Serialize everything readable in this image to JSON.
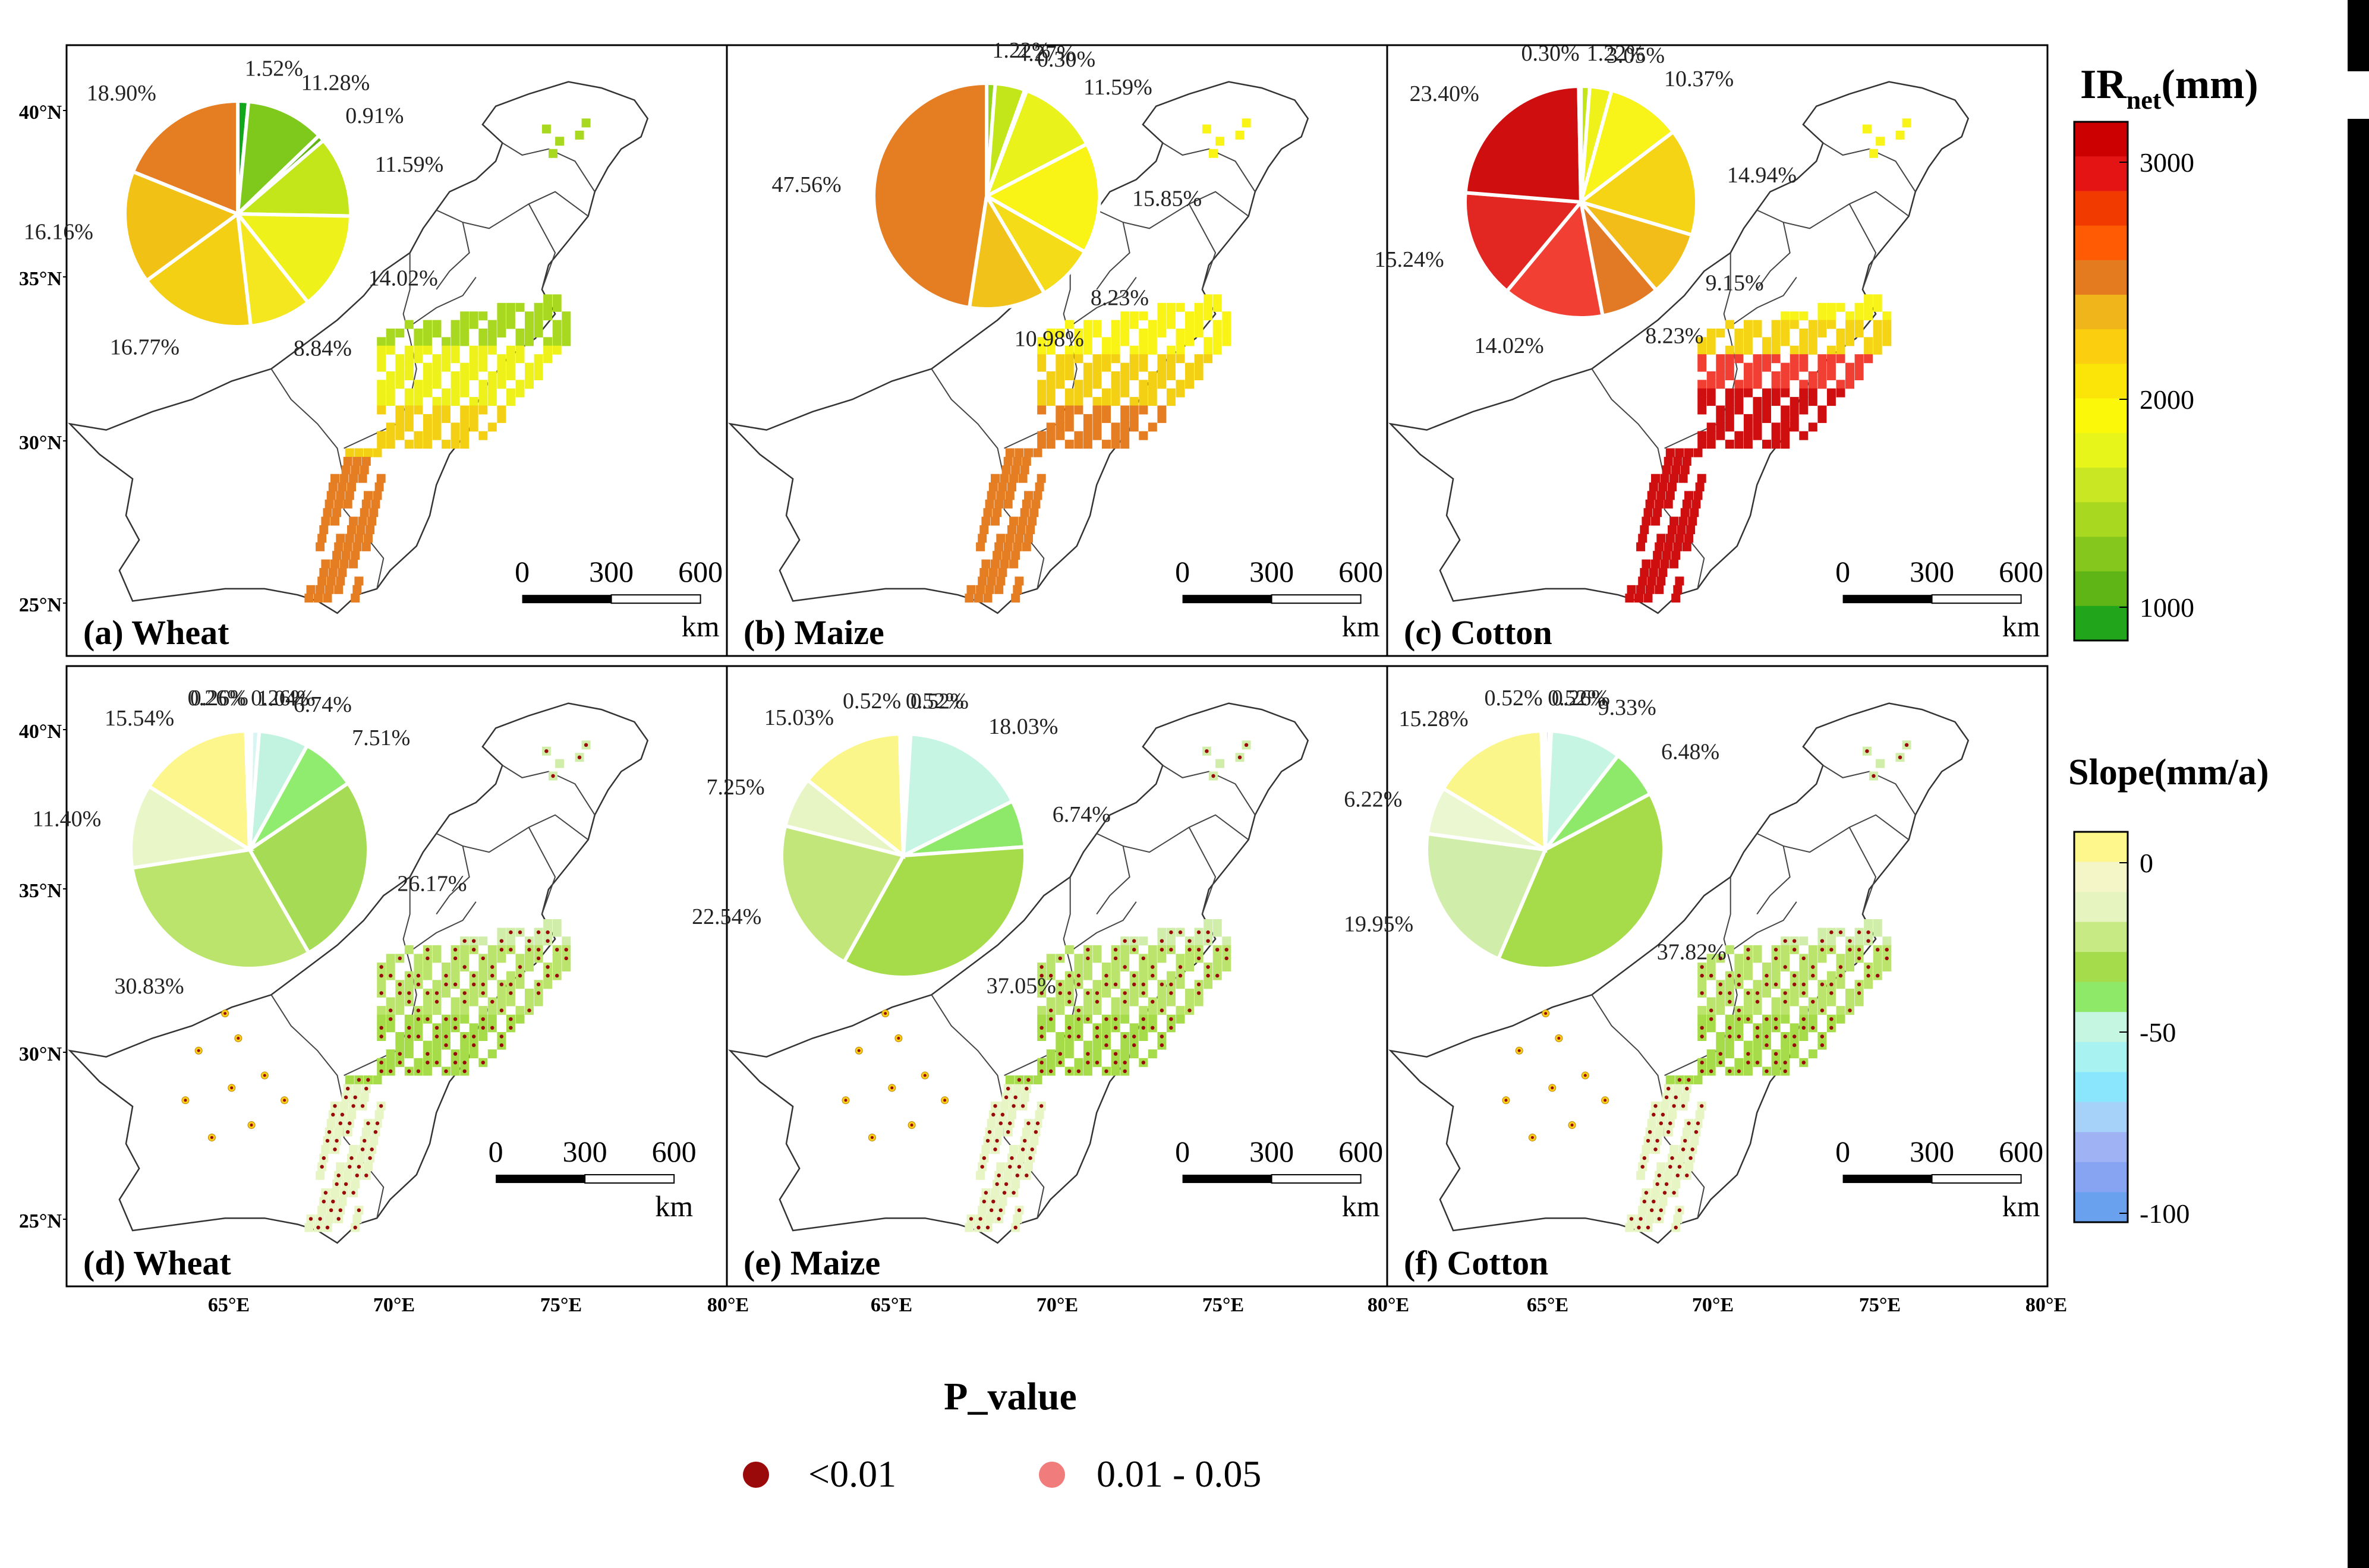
{
  "panels": [
    {
      "id": "a",
      "label": "(a) Wheat",
      "kind": "ir",
      "pie": [
        {
          "v": 1.52,
          "c": "#11a81b",
          "t": "1.52%"
        },
        {
          "v": 11.28,
          "c": "#7ec91c",
          "t": "11.28%"
        },
        {
          "v": 0.91,
          "c": "#5fb515",
          "t": "0.91%"
        },
        {
          "v": 11.59,
          "c": "#c3e61a",
          "t": "11.59%"
        },
        {
          "v": 14.02,
          "c": "#eef21a",
          "t": "14.02%"
        },
        {
          "v": 8.84,
          "c": "#f4e71f",
          "t": "8.84%"
        },
        {
          "v": 16.77,
          "c": "#f4d015",
          "t": "16.77%"
        },
        {
          "v": 16.16,
          "c": "#f2c116",
          "t": "16.16%"
        },
        {
          "v": 18.9,
          "c": "#e57d23",
          "t": "18.90%"
        }
      ]
    },
    {
      "id": "b",
      "label": "(b) Maize",
      "kind": "ir",
      "pie": [
        {
          "v": 1.22,
          "c": "#93d41d",
          "t": "1.22%"
        },
        {
          "v": 4.27,
          "c": "#c3e61a",
          "t": "4.27%"
        },
        {
          "v": 0.3,
          "c": "#d8ee1a",
          "t": "0.30%"
        },
        {
          "v": 11.59,
          "c": "#e9f21b",
          "t": "11.59%"
        },
        {
          "v": 15.85,
          "c": "#f9f415",
          "t": "15.85%"
        },
        {
          "v": 8.23,
          "c": "#f4dc19",
          "t": "8.23%"
        },
        {
          "v": 10.98,
          "c": "#f1c219",
          "t": "10.98%"
        },
        {
          "v": 47.56,
          "c": "#e57d23",
          "t": "47.56%"
        }
      ]
    },
    {
      "id": "c",
      "label": "(c) Cotton",
      "kind": "ir",
      "pie": [
        {
          "v": 1.22,
          "c": "#c3e61a",
          "t": "1.22%"
        },
        {
          "v": 3.05,
          "c": "#eef21a",
          "t": "3.05%"
        },
        {
          "v": 10.37,
          "c": "#f8f318",
          "t": "10.37%"
        },
        {
          "v": 14.94,
          "c": "#f4d415",
          "t": "14.94%"
        },
        {
          "v": 9.15,
          "c": "#f2bd18",
          "t": "9.15%"
        },
        {
          "v": 8.23,
          "c": "#e27a25",
          "t": "8.23%"
        },
        {
          "v": 14.02,
          "c": "#f23f34",
          "t": "14.02%"
        },
        {
          "v": 15.24,
          "c": "#e22622",
          "t": "15.24%"
        },
        {
          "v": 23.4,
          "c": "#cf0f0f",
          "t": "23.40%"
        },
        {
          "v": 0.3,
          "c": "#b60a0a",
          "t": "0.30%"
        }
      ]
    },
    {
      "id": "d",
      "label": "(d) Wheat",
      "kind": "slope",
      "pie": [
        {
          "v": 0.26,
          "c": "#cfeef6",
          "t": "0.26%"
        },
        {
          "v": 1.04,
          "c": "#d8f5f4",
          "t": "1.04%"
        },
        {
          "v": 6.74,
          "c": "#c1f3e0",
          "t": "6.74%"
        },
        {
          "v": 7.51,
          "c": "#90ec6e",
          "t": "7.51%"
        },
        {
          "v": 26.17,
          "c": "#a6dc55",
          "t": "26.17%"
        },
        {
          "v": 30.83,
          "c": "#bbe46c",
          "t": "30.83%"
        },
        {
          "v": 11.4,
          "c": "#e9f6c7",
          "t": "11.40%"
        },
        {
          "v": 15.54,
          "c": "#fcf68c",
          "t": "15.54%"
        },
        {
          "v": 0.26,
          "c": "#fbf9d8",
          "t": "0.26%"
        },
        {
          "v": 0.26,
          "c": "#f4f4e4",
          "t": "0.26%"
        }
      ]
    },
    {
      "id": "e",
      "label": "(e) Maize",
      "kind": "slope",
      "pie": [
        {
          "v": 0.52,
          "c": "#8fdcfa",
          "t": "0.52%"
        },
        {
          "v": 0.52,
          "c": "#bdeef6",
          "t": "0.52%"
        },
        {
          "v": 18.03,
          "c": "#c6f5e4",
          "t": "18.03%"
        },
        {
          "v": 6.74,
          "c": "#8ee96b",
          "t": "6.74%"
        },
        {
          "v": 37.05,
          "c": "#a6dc4a",
          "t": "37.05%"
        },
        {
          "v": 22.54,
          "c": "#c2e67a",
          "t": "22.54%"
        },
        {
          "v": 7.25,
          "c": "#e7f5c5",
          "t": "7.25%"
        },
        {
          "v": 15.03,
          "c": "#fbf68a",
          "t": "15.03%"
        },
        {
          "v": 0.52,
          "c": "#fbf9d8",
          "t": "0.52%"
        }
      ]
    },
    {
      "id": "f",
      "label": "(f) Cotton",
      "kind": "slope",
      "pie": [
        {
          "v": 0.52,
          "c": "#6fd9ee",
          "t": "0.52%"
        },
        {
          "v": 0.26,
          "c": "#9be7f6",
          "t": "0.26%"
        },
        {
          "v": 9.33,
          "c": "#c6f5e4",
          "t": "9.33%"
        },
        {
          "v": 6.48,
          "c": "#8ee96b",
          "t": "6.48%"
        },
        {
          "v": 37.82,
          "c": "#a6dc4a",
          "t": "37.82%"
        },
        {
          "v": 19.95,
          "c": "#d1edaa",
          "t": "19.95%"
        },
        {
          "v": 6.22,
          "c": "#eaf7d0",
          "t": "6.22%"
        },
        {
          "v": 15.28,
          "c": "#fbf68a",
          "t": "15.28%"
        },
        {
          "v": 0.52,
          "c": "#fbf9d8",
          "t": "0.52%"
        }
      ]
    }
  ],
  "lat_labels": [
    "40°N",
    "35°N",
    "30°N",
    "25°N"
  ],
  "lon_labels": [
    "65°E",
    "70°E",
    "75°E",
    "80°E"
  ],
  "scalebar": {
    "ticks": [
      "0",
      "300",
      "600"
    ],
    "unit": "km"
  },
  "legend_ir": {
    "title_main": "IR",
    "title_sub": "net",
    "title_unit": "(mm)",
    "ticks": [
      "3000",
      "2000",
      "1000"
    ],
    "colors": [
      "#cc0000",
      "#e51414",
      "#f03a00",
      "#ff5b05",
      "#e47b1f",
      "#f0b51a",
      "#fbcf10",
      "#fbe509",
      "#fbf80a",
      "#e7f51a",
      "#c9e722",
      "#a9d820",
      "#86c71d",
      "#5fb516",
      "#21a51b"
    ]
  },
  "legend_slope": {
    "title": "Slope(mm/a)",
    "ticks": [
      "0",
      "-50",
      "-100"
    ],
    "colors": [
      "#fdf78c",
      "#f4f6c8",
      "#e6f5c0",
      "#c8ea84",
      "#a4dc4c",
      "#8fe969",
      "#c4f6e2",
      "#a9f2f2",
      "#8ae6fc",
      "#a6d1f8",
      "#9fb2f4",
      "#86a4f2",
      "#6aa1ee"
    ]
  },
  "pvalue_legend": {
    "title": "P_value",
    "items": [
      {
        "label": "<0.01",
        "color": "#9b0a0a"
      },
      {
        "label": "0.01 - 0.05",
        "color": "#f07c7c"
      }
    ]
  }
}
